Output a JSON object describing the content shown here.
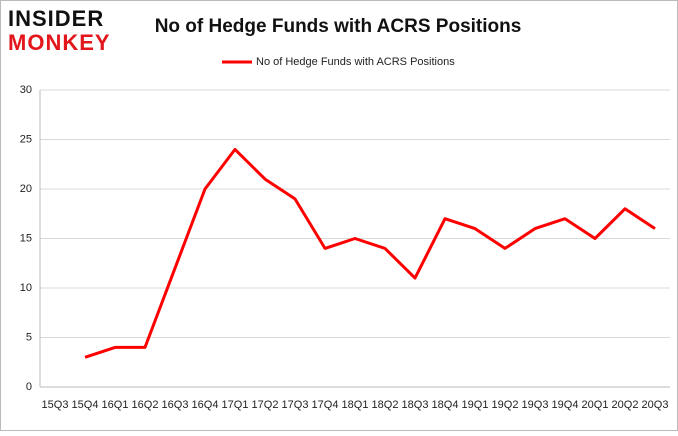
{
  "logo": {
    "line1": "INSIDER",
    "line2": "MONKEY"
  },
  "chart_data": {
    "type": "line",
    "title": "No of Hedge Funds with ACRS Positions",
    "categories": [
      "15Q3",
      "15Q4",
      "16Q1",
      "16Q2",
      "16Q3",
      "16Q4",
      "17Q1",
      "17Q2",
      "17Q3",
      "17Q4",
      "18Q1",
      "18Q2",
      "18Q3",
      "18Q4",
      "19Q1",
      "19Q2",
      "19Q3",
      "19Q4",
      "20Q1",
      "20Q2",
      "20Q3"
    ],
    "series": [
      {
        "name": "No of Hedge Funds with ACRS Positions",
        "color": "#ff0000",
        "values": [
          null,
          3,
          4,
          4,
          12,
          20,
          24,
          21,
          19,
          14,
          15,
          14,
          11,
          17,
          16,
          14,
          16,
          17,
          15,
          18,
          16
        ]
      }
    ],
    "ylim": [
      0,
      30
    ],
    "yticks": [
      0,
      5,
      10,
      15,
      20,
      25,
      30
    ],
    "grid": true,
    "legend": "top"
  }
}
